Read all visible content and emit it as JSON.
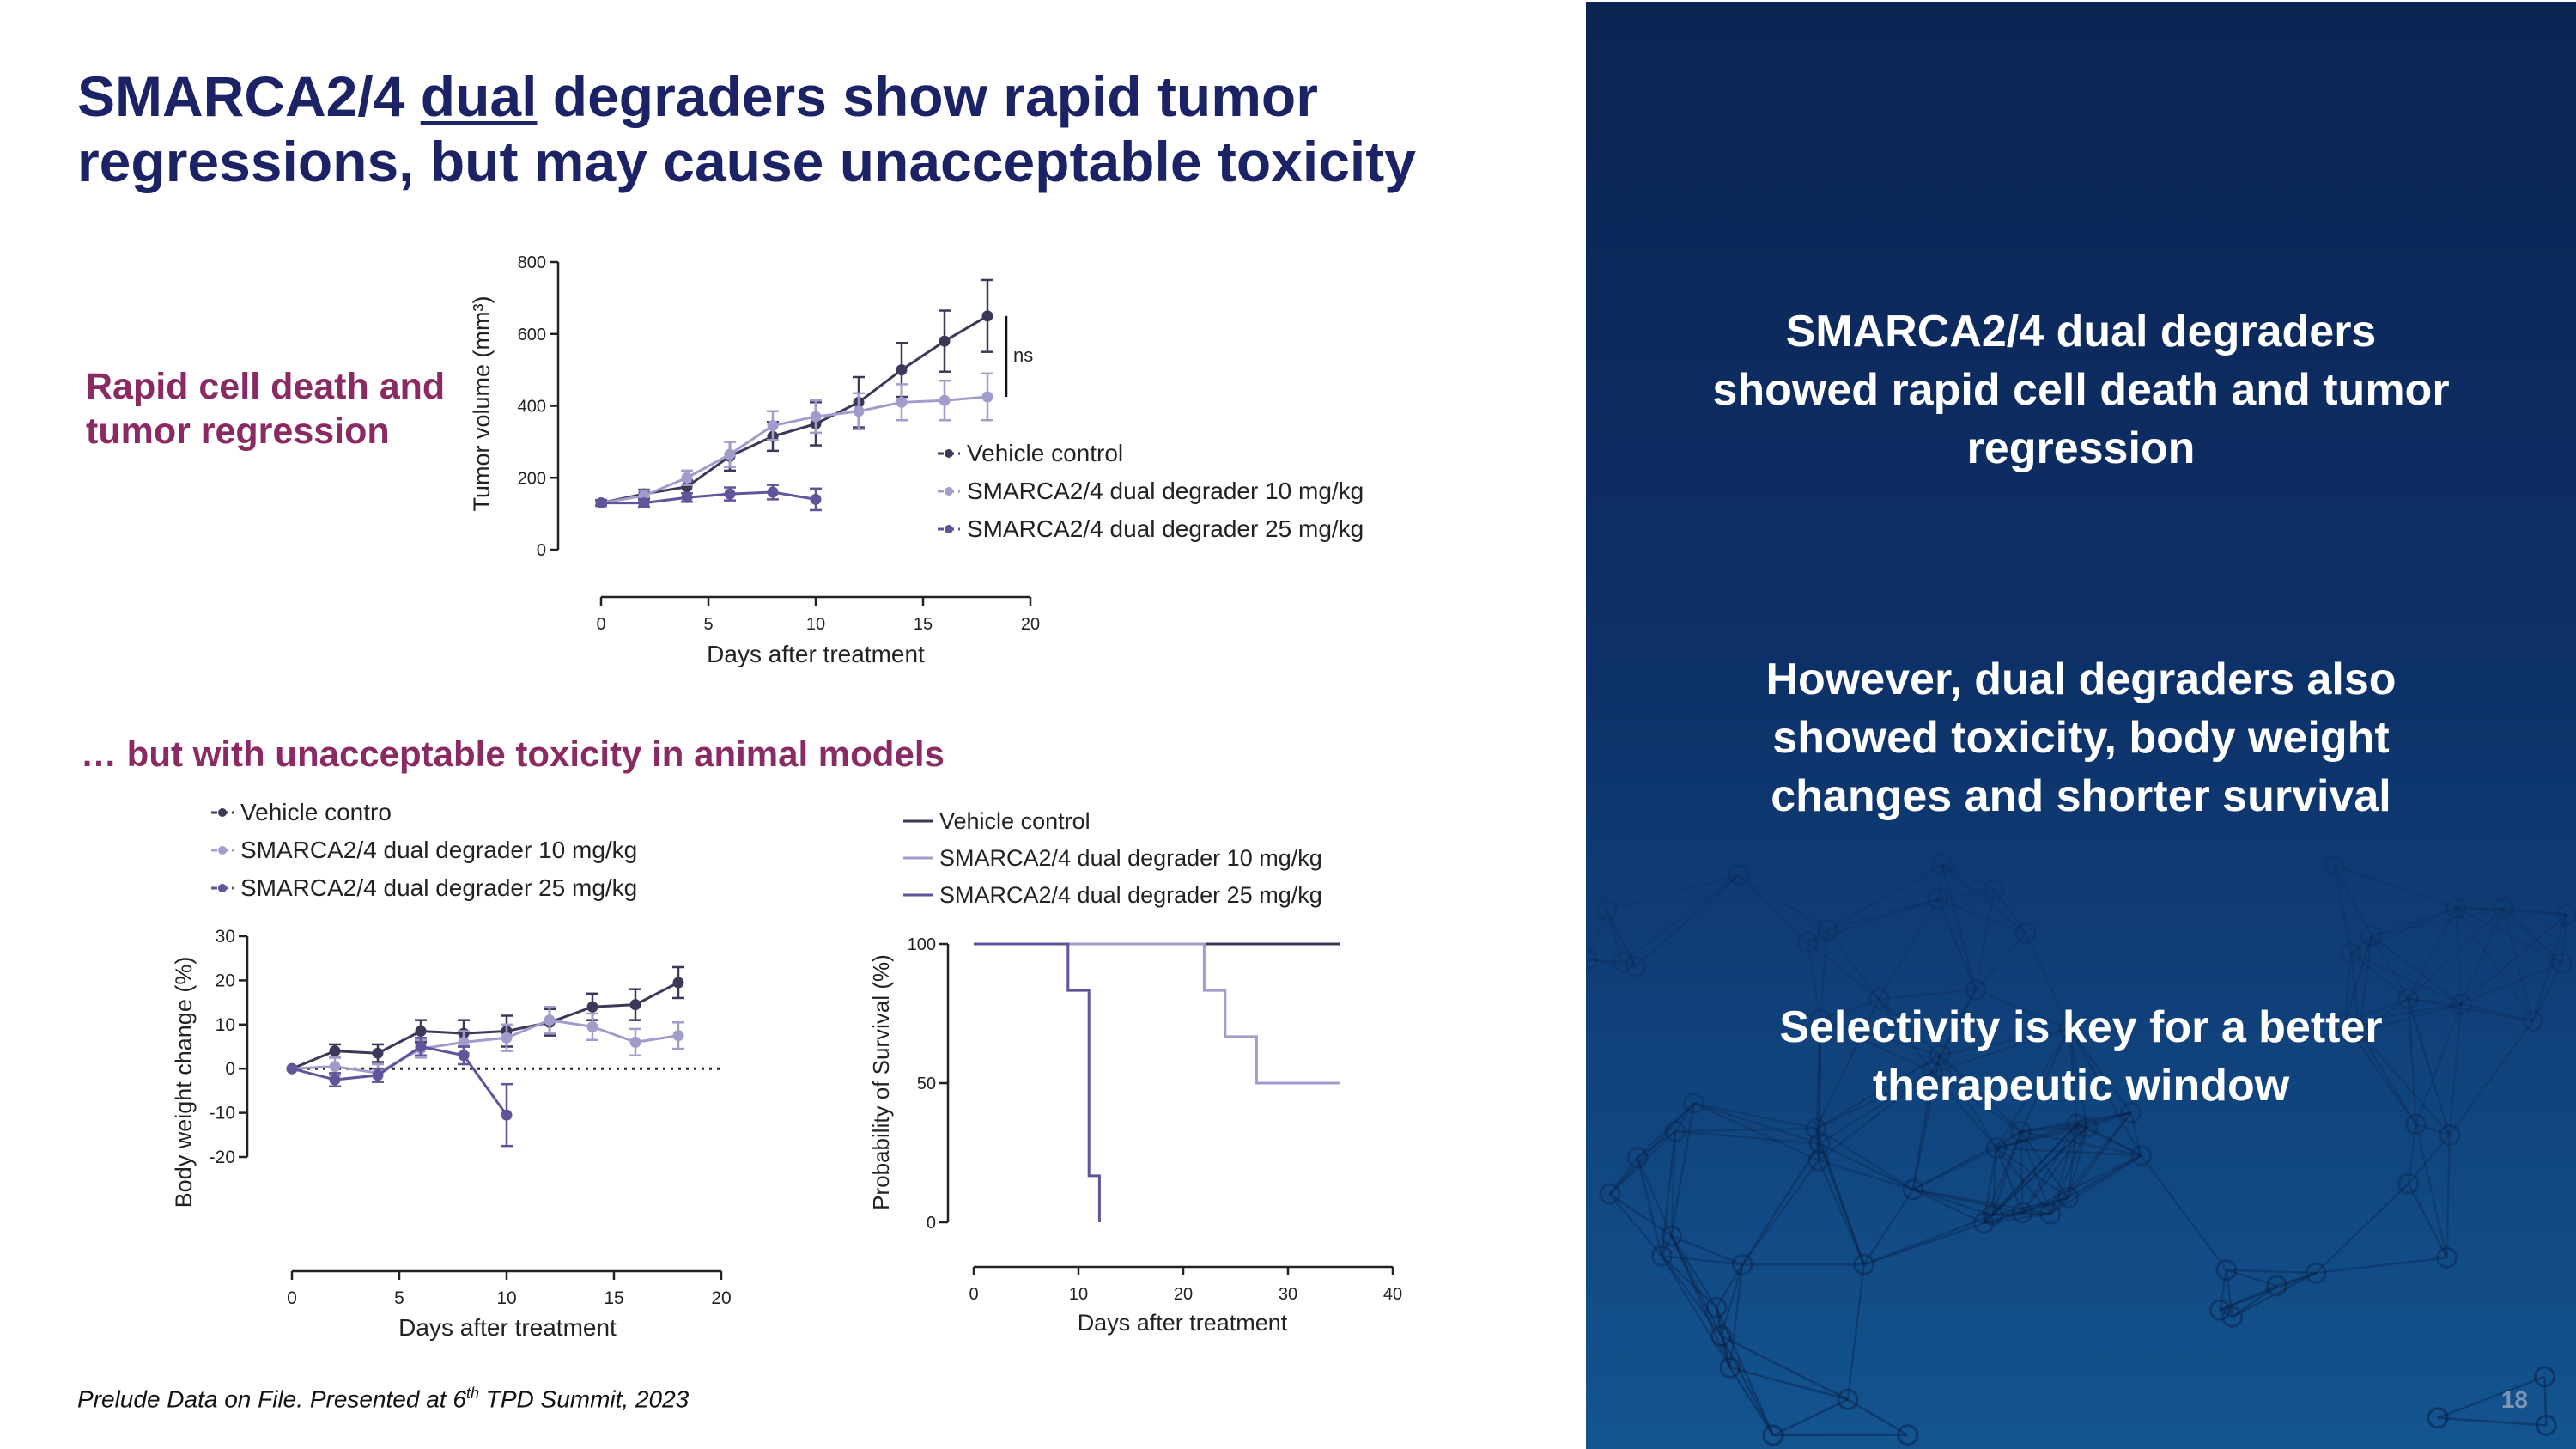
{
  "title": {
    "part1": "SMARCA2/4 ",
    "underlined": "dual",
    "part2": " degraders show rapid tumor regressions, but may cause unacceptable toxicity"
  },
  "left_labels": {
    "rapid": "Rapid cell death and tumor regression",
    "toxicity": "… but with unacceptable toxicity in animal models"
  },
  "footnote": {
    "text": "Prelude Data on File.  Presented at 6",
    "sup": "th",
    "rest": " TPD Summit, 2023"
  },
  "right_panel": {
    "point1": "SMARCA2/4 dual degraders showed rapid cell death and tumor regression",
    "point2": "However, dual degraders also showed toxicity, body weight changes and shorter survival",
    "point3": "Selectivity is key for a better therapeutic window",
    "page_number": "18"
  },
  "colors": {
    "navy": "#1b2266",
    "maroon": "#8b2a62",
    "vehicle": "#3b3958",
    "dose10": "#a09ccb",
    "dose25": "#5e559a"
  },
  "chart_data": [
    {
      "type": "line",
      "ylabel": "Tumor volume (mm³)",
      "xlabel": "Days after treatment",
      "xlim": [
        0,
        20
      ],
      "ylim": [
        0,
        800
      ],
      "xticks": [
        0,
        5,
        10,
        15,
        20
      ],
      "yticks": [
        0,
        200,
        400,
        600,
        800
      ],
      "annotation": "ns",
      "legend_placement": "right",
      "series": [
        {
          "name": "Vehicle control",
          "color": "#3b3958",
          "x": [
            0,
            2,
            4,
            6,
            8,
            10,
            12,
            14,
            16,
            18
          ],
          "y": [
            130,
            155,
            175,
            260,
            315,
            350,
            410,
            500,
            580,
            650
          ],
          "err": [
            8,
            12,
            18,
            40,
            40,
            60,
            70,
            75,
            85,
            100
          ]
        },
        {
          "name": "SMARCA2/4 dual degrader 10 mg/kg",
          "color": "#a09ccb",
          "x": [
            0,
            2,
            4,
            6,
            8,
            10,
            12,
            14,
            16,
            18
          ],
          "y": [
            130,
            150,
            200,
            265,
            345,
            370,
            385,
            410,
            415,
            425
          ],
          "err": [
            8,
            15,
            20,
            35,
            40,
            45,
            50,
            50,
            55,
            65
          ]
        },
        {
          "name": "SMARCA2/4 dual degrader 25 mg/kg",
          "color": "#5e559a",
          "x": [
            0,
            2,
            4,
            6,
            8,
            10
          ],
          "y": [
            130,
            130,
            145,
            155,
            160,
            140
          ],
          "err": [
            8,
            10,
            12,
            18,
            20,
            30
          ]
        }
      ]
    },
    {
      "type": "line",
      "ylabel": "Body weight change (%)",
      "xlabel": "Days after treatment",
      "xlim": [
        0,
        20
      ],
      "ylim": [
        -20,
        30
      ],
      "xticks": [
        0,
        5,
        10,
        15,
        20
      ],
      "yticks": [
        -20,
        -10,
        0,
        10,
        20,
        30
      ],
      "baseline": 0,
      "legend_placement": "top",
      "series": [
        {
          "name": "Vehicle contro",
          "color": "#3b3958",
          "x": [
            0,
            2,
            4,
            6,
            8,
            10,
            12,
            14,
            16,
            18
          ],
          "y": [
            0,
            4,
            3.5,
            8.5,
            8,
            8.5,
            10.5,
            14,
            14.5,
            19.5
          ],
          "err": [
            0,
            1.5,
            2,
            2.5,
            3,
            3.5,
            3,
            3,
            3.5,
            3.5
          ]
        },
        {
          "name": "SMARCA2/4 dual degrader 10 mg/kg",
          "color": "#a09ccb",
          "x": [
            0,
            2,
            4,
            6,
            8,
            10,
            12,
            14,
            16,
            18
          ],
          "y": [
            0,
            0.5,
            -1,
            4.5,
            6,
            7,
            11,
            9.5,
            6,
            7.5
          ],
          "err": [
            0,
            2,
            2,
            2,
            2.5,
            3,
            3,
            3,
            3,
            3
          ]
        },
        {
          "name": "SMARCA2/4 dual degrader 25 mg/kg",
          "color": "#5e559a",
          "x": [
            0,
            2,
            4,
            6,
            8,
            10
          ],
          "y": [
            0,
            -2.5,
            -1.5,
            5,
            3,
            -10.5
          ],
          "err": [
            0,
            1.5,
            1.5,
            2,
            2,
            7
          ]
        }
      ]
    },
    {
      "type": "line",
      "subtype": "survival-step",
      "ylabel": "Probability of Survival (%)",
      "xlabel": "Days after treatment",
      "xlim": [
        0,
        40
      ],
      "ylim": [
        0,
        100
      ],
      "xticks": [
        0,
        10,
        20,
        30,
        40
      ],
      "yticks": [
        0,
        50,
        100
      ],
      "legend_placement": "top",
      "series": [
        {
          "name": "Vehicle control",
          "color": "#3b3958",
          "x": [
            0,
            35
          ],
          "y": [
            100,
            100
          ]
        },
        {
          "name": "SMARCA2/4 dual degrader 10 mg/kg",
          "color": "#a09ccb",
          "x": [
            0,
            22,
            24,
            27,
            35
          ],
          "y": [
            100,
            83.3,
            66.7,
            50,
            50
          ]
        },
        {
          "name": "SMARCA2/4 dual degrader 25 mg/kg",
          "color": "#5e559a",
          "x": [
            0,
            9,
            11,
            12
          ],
          "y": [
            100,
            83.3,
            16.7,
            0
          ]
        }
      ]
    }
  ]
}
